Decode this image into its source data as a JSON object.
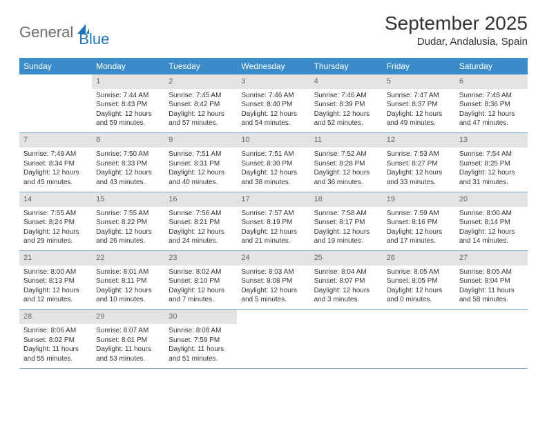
{
  "logo": {
    "general": "General",
    "blue": "Blue"
  },
  "title": "September 2025",
  "location": "Dudar, Andalusia, Spain",
  "colors": {
    "header_bg": "#3b8bc9",
    "header_text": "#ffffff",
    "daynum_bg": "#e3e3e3",
    "daynum_text": "#666666",
    "border": "#7aa9d0",
    "body_text": "#333333",
    "logo_gray": "#6a6a6a",
    "logo_blue": "#2176b8",
    "page_bg": "#ffffff"
  },
  "days": [
    "Sunday",
    "Monday",
    "Tuesday",
    "Wednesday",
    "Thursday",
    "Friday",
    "Saturday"
  ],
  "weeks": [
    {
      "nums": [
        "",
        "1",
        "2",
        "3",
        "4",
        "5",
        "6"
      ],
      "cells": [
        null,
        {
          "sunrise": "Sunrise: 7:44 AM",
          "sunset": "Sunset: 8:43 PM",
          "day1": "Daylight: 12 hours",
          "day2": "and 59 minutes."
        },
        {
          "sunrise": "Sunrise: 7:45 AM",
          "sunset": "Sunset: 8:42 PM",
          "day1": "Daylight: 12 hours",
          "day2": "and 57 minutes."
        },
        {
          "sunrise": "Sunrise: 7:46 AM",
          "sunset": "Sunset: 8:40 PM",
          "day1": "Daylight: 12 hours",
          "day2": "and 54 minutes."
        },
        {
          "sunrise": "Sunrise: 7:46 AM",
          "sunset": "Sunset: 8:39 PM",
          "day1": "Daylight: 12 hours",
          "day2": "and 52 minutes."
        },
        {
          "sunrise": "Sunrise: 7:47 AM",
          "sunset": "Sunset: 8:37 PM",
          "day1": "Daylight: 12 hours",
          "day2": "and 49 minutes."
        },
        {
          "sunrise": "Sunrise: 7:48 AM",
          "sunset": "Sunset: 8:36 PM",
          "day1": "Daylight: 12 hours",
          "day2": "and 47 minutes."
        }
      ]
    },
    {
      "nums": [
        "7",
        "8",
        "9",
        "10",
        "11",
        "12",
        "13"
      ],
      "cells": [
        {
          "sunrise": "Sunrise: 7:49 AM",
          "sunset": "Sunset: 8:34 PM",
          "day1": "Daylight: 12 hours",
          "day2": "and 45 minutes."
        },
        {
          "sunrise": "Sunrise: 7:50 AM",
          "sunset": "Sunset: 8:33 PM",
          "day1": "Daylight: 12 hours",
          "day2": "and 43 minutes."
        },
        {
          "sunrise": "Sunrise: 7:51 AM",
          "sunset": "Sunset: 8:31 PM",
          "day1": "Daylight: 12 hours",
          "day2": "and 40 minutes."
        },
        {
          "sunrise": "Sunrise: 7:51 AM",
          "sunset": "Sunset: 8:30 PM",
          "day1": "Daylight: 12 hours",
          "day2": "and 38 minutes."
        },
        {
          "sunrise": "Sunrise: 7:52 AM",
          "sunset": "Sunset: 8:28 PM",
          "day1": "Daylight: 12 hours",
          "day2": "and 36 minutes."
        },
        {
          "sunrise": "Sunrise: 7:53 AM",
          "sunset": "Sunset: 8:27 PM",
          "day1": "Daylight: 12 hours",
          "day2": "and 33 minutes."
        },
        {
          "sunrise": "Sunrise: 7:54 AM",
          "sunset": "Sunset: 8:25 PM",
          "day1": "Daylight: 12 hours",
          "day2": "and 31 minutes."
        }
      ]
    },
    {
      "nums": [
        "14",
        "15",
        "16",
        "17",
        "18",
        "19",
        "20"
      ],
      "cells": [
        {
          "sunrise": "Sunrise: 7:55 AM",
          "sunset": "Sunset: 8:24 PM",
          "day1": "Daylight: 12 hours",
          "day2": "and 29 minutes."
        },
        {
          "sunrise": "Sunrise: 7:55 AM",
          "sunset": "Sunset: 8:22 PM",
          "day1": "Daylight: 12 hours",
          "day2": "and 26 minutes."
        },
        {
          "sunrise": "Sunrise: 7:56 AM",
          "sunset": "Sunset: 8:21 PM",
          "day1": "Daylight: 12 hours",
          "day2": "and 24 minutes."
        },
        {
          "sunrise": "Sunrise: 7:57 AM",
          "sunset": "Sunset: 8:19 PM",
          "day1": "Daylight: 12 hours",
          "day2": "and 21 minutes."
        },
        {
          "sunrise": "Sunrise: 7:58 AM",
          "sunset": "Sunset: 8:17 PM",
          "day1": "Daylight: 12 hours",
          "day2": "and 19 minutes."
        },
        {
          "sunrise": "Sunrise: 7:59 AM",
          "sunset": "Sunset: 8:16 PM",
          "day1": "Daylight: 12 hours",
          "day2": "and 17 minutes."
        },
        {
          "sunrise": "Sunrise: 8:00 AM",
          "sunset": "Sunset: 8:14 PM",
          "day1": "Daylight: 12 hours",
          "day2": "and 14 minutes."
        }
      ]
    },
    {
      "nums": [
        "21",
        "22",
        "23",
        "24",
        "25",
        "26",
        "27"
      ],
      "cells": [
        {
          "sunrise": "Sunrise: 8:00 AM",
          "sunset": "Sunset: 8:13 PM",
          "day1": "Daylight: 12 hours",
          "day2": "and 12 minutes."
        },
        {
          "sunrise": "Sunrise: 8:01 AM",
          "sunset": "Sunset: 8:11 PM",
          "day1": "Daylight: 12 hours",
          "day2": "and 10 minutes."
        },
        {
          "sunrise": "Sunrise: 8:02 AM",
          "sunset": "Sunset: 8:10 PM",
          "day1": "Daylight: 12 hours",
          "day2": "and 7 minutes."
        },
        {
          "sunrise": "Sunrise: 8:03 AM",
          "sunset": "Sunset: 8:08 PM",
          "day1": "Daylight: 12 hours",
          "day2": "and 5 minutes."
        },
        {
          "sunrise": "Sunrise: 8:04 AM",
          "sunset": "Sunset: 8:07 PM",
          "day1": "Daylight: 12 hours",
          "day2": "and 3 minutes."
        },
        {
          "sunrise": "Sunrise: 8:05 AM",
          "sunset": "Sunset: 8:05 PM",
          "day1": "Daylight: 12 hours",
          "day2": "and 0 minutes."
        },
        {
          "sunrise": "Sunrise: 8:05 AM",
          "sunset": "Sunset: 8:04 PM",
          "day1": "Daylight: 11 hours",
          "day2": "and 58 minutes."
        }
      ]
    },
    {
      "nums": [
        "28",
        "29",
        "30",
        "",
        "",
        "",
        ""
      ],
      "cells": [
        {
          "sunrise": "Sunrise: 8:06 AM",
          "sunset": "Sunset: 8:02 PM",
          "day1": "Daylight: 11 hours",
          "day2": "and 55 minutes."
        },
        {
          "sunrise": "Sunrise: 8:07 AM",
          "sunset": "Sunset: 8:01 PM",
          "day1": "Daylight: 11 hours",
          "day2": "and 53 minutes."
        },
        {
          "sunrise": "Sunrise: 8:08 AM",
          "sunset": "Sunset: 7:59 PM",
          "day1": "Daylight: 11 hours",
          "day2": "and 51 minutes."
        },
        null,
        null,
        null,
        null
      ]
    }
  ]
}
